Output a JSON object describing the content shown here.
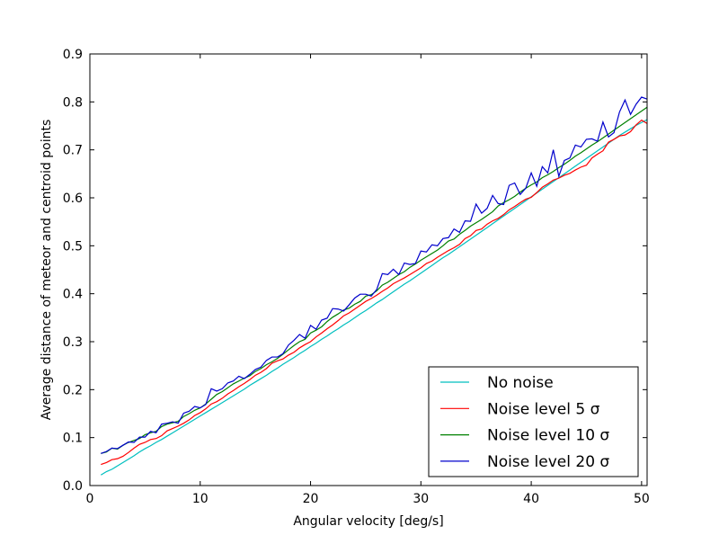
{
  "chart_data": {
    "type": "line",
    "title": "",
    "xlabel": "Angular velocity [deg/s]",
    "ylabel": "Average distance of meteor and centroid points",
    "xlim": [
      0,
      50.5
    ],
    "ylim": [
      0,
      0.9
    ],
    "xticks": [
      0,
      10,
      20,
      30,
      40,
      50
    ],
    "yticks": [
      0.0,
      0.1,
      0.2,
      0.3,
      0.4,
      0.5,
      0.6,
      0.7,
      0.8,
      0.9
    ],
    "xtick_labels": [
      "0",
      "10",
      "20",
      "30",
      "40",
      "50"
    ],
    "ytick_labels": [
      "0.0",
      "0.1",
      "0.2",
      "0.3",
      "0.4",
      "0.5",
      "0.6",
      "0.7",
      "0.8",
      "0.9"
    ],
    "grid": false,
    "legend_position": "lower-right",
    "x": [
      1,
      1.5,
      2,
      2.5,
      3,
      3.5,
      4,
      4.5,
      5,
      5.5,
      6,
      6.5,
      7,
      7.5,
      8,
      8.5,
      9,
      9.5,
      10,
      10.5,
      11,
      11.5,
      12,
      12.5,
      13,
      13.5,
      14,
      14.5,
      15,
      15.5,
      16,
      16.5,
      17,
      17.5,
      18,
      18.5,
      19,
      19.5,
      20,
      20.5,
      21,
      21.5,
      22,
      22.5,
      23,
      23.5,
      24,
      24.5,
      25,
      25.5,
      26,
      26.5,
      27,
      27.5,
      28,
      28.5,
      29,
      29.5,
      30,
      30.5,
      31,
      31.5,
      32,
      32.5,
      33,
      33.5,
      34,
      34.5,
      35,
      35.5,
      36,
      36.5,
      37,
      37.5,
      38,
      38.5,
      39,
      39.5,
      40,
      40.5,
      41,
      41.5,
      42,
      42.5,
      43,
      43.5,
      44,
      44.5,
      45,
      45.5,
      46,
      46.5,
      47,
      47.5,
      48,
      48.5,
      49,
      49.5,
      50,
      50.5
    ],
    "series": [
      {
        "name": "No noise",
        "color": "#00bfbf",
        "values": [
          0.022,
          0.029,
          0.034,
          0.041,
          0.048,
          0.055,
          0.062,
          0.07,
          0.077,
          0.083,
          0.09,
          0.096,
          0.103,
          0.11,
          0.117,
          0.124,
          0.131,
          0.138,
          0.145,
          0.152,
          0.159,
          0.166,
          0.173,
          0.18,
          0.187,
          0.194,
          0.201,
          0.209,
          0.216,
          0.223,
          0.23,
          0.238,
          0.245,
          0.253,
          0.26,
          0.267,
          0.275,
          0.282,
          0.29,
          0.297,
          0.305,
          0.312,
          0.32,
          0.327,
          0.335,
          0.342,
          0.35,
          0.358,
          0.365,
          0.373,
          0.381,
          0.388,
          0.396,
          0.404,
          0.412,
          0.42,
          0.427,
          0.435,
          0.443,
          0.451,
          0.459,
          0.467,
          0.475,
          0.482,
          0.49,
          0.498,
          0.506,
          0.514,
          0.522,
          0.53,
          0.538,
          0.546,
          0.554,
          0.562,
          0.57,
          0.578,
          0.586,
          0.594,
          0.602,
          0.61,
          0.618,
          0.626,
          0.634,
          0.642,
          0.65,
          0.658,
          0.666,
          0.674,
          0.682,
          0.69,
          0.698,
          0.706,
          0.714,
          0.722,
          0.73,
          0.737,
          0.744,
          0.751,
          0.757,
          0.763
        ]
      },
      {
        "name": "Noise level 5 σ",
        "color": "#ff0000",
        "values": [
          0.044,
          0.048,
          0.054,
          0.056,
          0.061,
          0.069,
          0.078,
          0.086,
          0.09,
          0.096,
          0.098,
          0.104,
          0.114,
          0.119,
          0.124,
          0.13,
          0.137,
          0.146,
          0.152,
          0.16,
          0.17,
          0.175,
          0.182,
          0.191,
          0.198,
          0.206,
          0.213,
          0.221,
          0.23,
          0.236,
          0.244,
          0.255,
          0.26,
          0.264,
          0.272,
          0.278,
          0.287,
          0.294,
          0.3,
          0.31,
          0.318,
          0.327,
          0.335,
          0.344,
          0.354,
          0.36,
          0.368,
          0.376,
          0.384,
          0.39,
          0.397,
          0.405,
          0.412,
          0.421,
          0.427,
          0.433,
          0.44,
          0.447,
          0.454,
          0.463,
          0.468,
          0.476,
          0.483,
          0.49,
          0.496,
          0.503,
          0.515,
          0.521,
          0.532,
          0.535,
          0.545,
          0.552,
          0.557,
          0.565,
          0.575,
          0.582,
          0.59,
          0.597,
          0.601,
          0.611,
          0.622,
          0.629,
          0.637,
          0.641,
          0.647,
          0.651,
          0.658,
          0.664,
          0.668,
          0.683,
          0.691,
          0.698,
          0.716,
          0.722,
          0.729,
          0.731,
          0.738,
          0.752,
          0.762,
          0.755
        ]
      },
      {
        "name": "Noise level 10 σ",
        "color": "#008000",
        "values": [
          0.067,
          0.07,
          0.078,
          0.076,
          0.084,
          0.09,
          0.094,
          0.098,
          0.106,
          0.11,
          0.113,
          0.123,
          0.128,
          0.131,
          0.134,
          0.144,
          0.15,
          0.157,
          0.162,
          0.17,
          0.18,
          0.19,
          0.196,
          0.204,
          0.212,
          0.218,
          0.224,
          0.229,
          0.238,
          0.244,
          0.252,
          0.258,
          0.265,
          0.274,
          0.283,
          0.292,
          0.3,
          0.305,
          0.318,
          0.324,
          0.331,
          0.342,
          0.351,
          0.358,
          0.366,
          0.37,
          0.378,
          0.384,
          0.395,
          0.398,
          0.406,
          0.418,
          0.424,
          0.432,
          0.44,
          0.446,
          0.455,
          0.462,
          0.47,
          0.477,
          0.484,
          0.491,
          0.5,
          0.51,
          0.514,
          0.524,
          0.532,
          0.541,
          0.548,
          0.555,
          0.563,
          0.571,
          0.583,
          0.59,
          0.596,
          0.603,
          0.612,
          0.62,
          0.627,
          0.633,
          0.642,
          0.648,
          0.655,
          0.663,
          0.67,
          0.678,
          0.687,
          0.694,
          0.702,
          0.71,
          0.717,
          0.725,
          0.733,
          0.741,
          0.749,
          0.757,
          0.765,
          0.773,
          0.781,
          0.789
        ]
      },
      {
        "name": "Noise level 20 σ",
        "color": "#0000cc",
        "values": [
          0.067,
          0.071,
          0.078,
          0.077,
          0.084,
          0.091,
          0.09,
          0.101,
          0.101,
          0.113,
          0.11,
          0.128,
          0.13,
          0.133,
          0.13,
          0.151,
          0.155,
          0.165,
          0.162,
          0.169,
          0.202,
          0.197,
          0.202,
          0.214,
          0.218,
          0.228,
          0.223,
          0.232,
          0.242,
          0.247,
          0.261,
          0.268,
          0.268,
          0.275,
          0.293,
          0.303,
          0.315,
          0.307,
          0.334,
          0.326,
          0.345,
          0.349,
          0.369,
          0.368,
          0.364,
          0.377,
          0.391,
          0.399,
          0.399,
          0.395,
          0.409,
          0.442,
          0.44,
          0.451,
          0.44,
          0.464,
          0.461,
          0.463,
          0.489,
          0.487,
          0.502,
          0.5,
          0.515,
          0.517,
          0.535,
          0.528,
          0.552,
          0.551,
          0.587,
          0.568,
          0.578,
          0.605,
          0.588,
          0.586,
          0.626,
          0.631,
          0.607,
          0.62,
          0.652,
          0.624,
          0.665,
          0.652,
          0.7,
          0.645,
          0.678,
          0.683,
          0.71,
          0.706,
          0.722,
          0.723,
          0.718,
          0.758,
          0.727,
          0.736,
          0.779,
          0.804,
          0.774,
          0.795,
          0.81,
          0.806
        ]
      }
    ]
  }
}
